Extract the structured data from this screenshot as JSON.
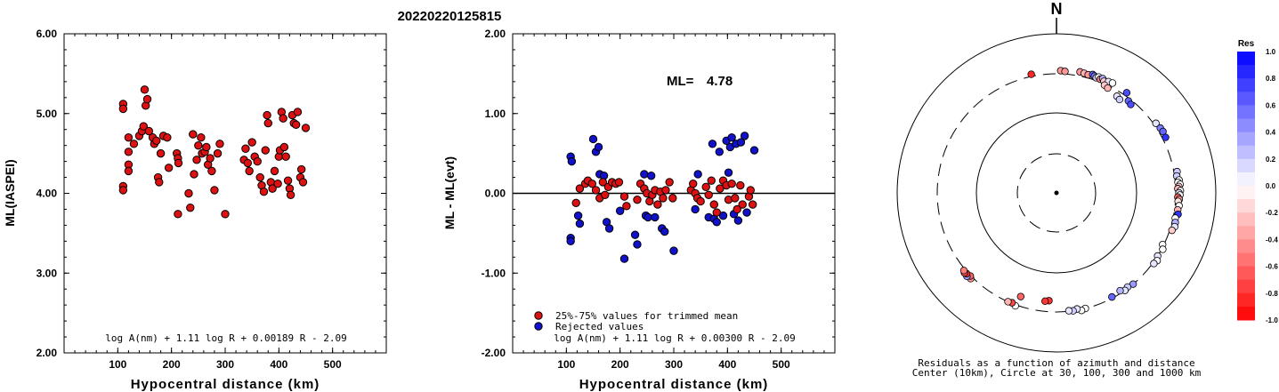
{
  "title": "20220220125815",
  "chart_data": [
    {
      "type": "scatter",
      "ylabel": "ML(IASPEI)",
      "xlabel": "Hypocentral distance (km)",
      "xlim": [
        0,
        600
      ],
      "ylim": [
        2.0,
        6.0
      ],
      "xticks": [
        "100",
        "200",
        "300",
        "400",
        "500"
      ],
      "yticks": [
        "2.00",
        "3.00",
        "4.00",
        "5.00",
        "6.00"
      ],
      "formula": "log A(nm) + 1.11 log R + 0.00189 R - 2.09",
      "marker_color": "#dd1111",
      "points": [
        [
          110,
          5.12
        ],
        [
          110,
          5.06
        ],
        [
          110,
          4.09
        ],
        [
          110,
          4.04
        ],
        [
          120,
          4.7
        ],
        [
          120,
          4.52
        ],
        [
          120,
          4.36
        ],
        [
          120,
          4.28
        ],
        [
          130,
          4.62
        ],
        [
          140,
          4.72
        ],
        [
          145,
          4.78
        ],
        [
          148,
          4.84
        ],
        [
          150,
          5.3
        ],
        [
          152,
          5.1
        ],
        [
          155,
          5.18
        ],
        [
          158,
          4.78
        ],
        [
          165,
          4.7
        ],
        [
          168,
          4.62
        ],
        [
          172,
          4.66
        ],
        [
          175,
          4.2
        ],
        [
          177,
          4.14
        ],
        [
          180,
          4.5
        ],
        [
          185,
          4.72
        ],
        [
          192,
          4.7
        ],
        [
          195,
          4.32
        ],
        [
          210,
          4.5
        ],
        [
          212,
          4.44
        ],
        [
          213,
          4.38
        ],
        [
          212,
          3.74
        ],
        [
          232,
          4.0
        ],
        [
          235,
          3.82
        ],
        [
          240,
          4.74
        ],
        [
          242,
          4.24
        ],
        [
          247,
          4.42
        ],
        [
          250,
          4.6
        ],
        [
          255,
          4.7
        ],
        [
          257,
          4.5
        ],
        [
          262,
          4.52
        ],
        [
          265,
          4.58
        ],
        [
          268,
          4.36
        ],
        [
          272,
          4.44
        ],
        [
          275,
          4.28
        ],
        [
          280,
          4.04
        ],
        [
          286,
          4.5
        ],
        [
          290,
          4.62
        ],
        [
          300,
          3.74
        ],
        [
          335,
          4.42
        ],
        [
          338,
          4.56
        ],
        [
          342,
          4.38
        ],
        [
          345,
          4.28
        ],
        [
          350,
          4.64
        ],
        [
          355,
          4.46
        ],
        [
          360,
          4.4
        ],
        [
          365,
          4.2
        ],
        [
          368,
          4.1
        ],
        [
          372,
          4.02
        ],
        [
          375,
          4.54
        ],
        [
          378,
          4.98
        ],
        [
          380,
          4.88
        ],
        [
          385,
          4.14
        ],
        [
          388,
          4.06
        ],
        [
          392,
          4.28
        ],
        [
          398,
          4.12
        ],
        [
          400,
          4.46
        ],
        [
          402,
          4.54
        ],
        [
          405,
          5.02
        ],
        [
          408,
          4.94
        ],
        [
          410,
          4.58
        ],
        [
          413,
          4.46
        ],
        [
          417,
          4.16
        ],
        [
          420,
          4.06
        ],
        [
          422,
          3.98
        ],
        [
          425,
          4.98
        ],
        [
          428,
          4.88
        ],
        [
          432,
          4.86
        ],
        [
          435,
          5.02
        ],
        [
          440,
          4.2
        ],
        [
          442,
          4.3
        ],
        [
          445,
          4.14
        ],
        [
          450,
          4.82
        ]
      ]
    },
    {
      "type": "scatter",
      "ylabel": "ML - ML(evt)",
      "xlabel": "Hypocentral distance (km)",
      "xlim": [
        0,
        600
      ],
      "ylim": [
        -2.0,
        2.0
      ],
      "xticks": [
        "100",
        "200",
        "300",
        "400",
        "500"
      ],
      "yticks": [
        "-2.00",
        "-1.00",
        "0.00",
        "1.00",
        "2.00"
      ],
      "ml_label": "ML=",
      "ml_value": "4.78",
      "formula": "log A(nm) + 1.11 log R + 0.00300 R - 2.09",
      "legend": [
        {
          "label": "25%-75% values for trimmed mean",
          "color": "#dd1111"
        },
        {
          "label": "Rejected values",
          "color": "#1111cc"
        }
      ],
      "trimmed": [
        [
          118,
          -0.12
        ],
        [
          125,
          0.06
        ],
        [
          135,
          0.12
        ],
        [
          140,
          0.16
        ],
        [
          148,
          0.12
        ],
        [
          155,
          0.04
        ],
        [
          162,
          -0.06
        ],
        [
          168,
          0.14
        ],
        [
          172,
          -0.02
        ],
        [
          178,
          0.08
        ],
        [
          185,
          0.14
        ],
        [
          192,
          0.12
        ],
        [
          198,
          0.14
        ],
        [
          208,
          -0.04
        ],
        [
          212,
          -0.16
        ],
        [
          232,
          -0.08
        ],
        [
          238,
          0.12
        ],
        [
          245,
          0.06
        ],
        [
          250,
          0.0
        ],
        [
          255,
          -0.1
        ],
        [
          260,
          -0.02
        ],
        [
          265,
          0.04
        ],
        [
          270,
          -0.14
        ],
        [
          275,
          0.02
        ],
        [
          280,
          -0.06
        ],
        [
          285,
          0.04
        ],
        [
          292,
          0.14
        ],
        [
          298,
          -0.06
        ],
        [
          332,
          0.04
        ],
        [
          336,
          0.12
        ],
        [
          340,
          0.0
        ],
        [
          344,
          -0.06
        ],
        [
          350,
          -0.1
        ],
        [
          360,
          0.08
        ],
        [
          365,
          -0.02
        ],
        [
          370,
          0.16
        ],
        [
          375,
          -0.14
        ],
        [
          380,
          -0.24
        ],
        [
          386,
          0.06
        ],
        [
          392,
          0.16
        ],
        [
          398,
          0.1
        ],
        [
          402,
          -0.08
        ],
        [
          408,
          0.12
        ],
        [
          414,
          -0.06
        ],
        [
          418,
          -0.2
        ],
        [
          424,
          0.1
        ],
        [
          428,
          -0.14
        ],
        [
          440,
          -0.04
        ],
        [
          443,
          0.04
        ],
        [
          447,
          -0.14
        ]
      ],
      "rejected": [
        [
          108,
          0.46
        ],
        [
          110,
          0.4
        ],
        [
          108,
          -0.56
        ],
        [
          108,
          -0.6
        ],
        [
          122,
          -0.28
        ],
        [
          125,
          -0.38
        ],
        [
          150,
          0.68
        ],
        [
          155,
          0.52
        ],
        [
          160,
          0.58
        ],
        [
          162,
          0.24
        ],
        [
          170,
          0.22
        ],
        [
          175,
          -0.36
        ],
        [
          180,
          -0.44
        ],
        [
          200,
          -0.22
        ],
        [
          208,
          -0.82
        ],
        [
          228,
          -0.52
        ],
        [
          232,
          -0.64
        ],
        [
          245,
          0.24
        ],
        [
          248,
          -0.28
        ],
        [
          252,
          -0.3
        ],
        [
          258,
          0.22
        ],
        [
          265,
          -0.3
        ],
        [
          278,
          -0.44
        ],
        [
          283,
          -0.48
        ],
        [
          300,
          -0.72
        ],
        [
          340,
          -0.2
        ],
        [
          345,
          0.24
        ],
        [
          365,
          -0.3
        ],
        [
          372,
          0.62
        ],
        [
          375,
          -0.32
        ],
        [
          380,
          -0.36
        ],
        [
          385,
          0.52
        ],
        [
          392,
          -0.28
        ],
        [
          398,
          0.66
        ],
        [
          402,
          0.26
        ],
        [
          405,
          0.58
        ],
        [
          408,
          0.7
        ],
        [
          412,
          -0.26
        ],
        [
          416,
          0.62
        ],
        [
          420,
          -0.34
        ],
        [
          425,
          0.64
        ],
        [
          432,
          0.72
        ],
        [
          436,
          -0.24
        ],
        [
          450,
          0.54
        ]
      ]
    },
    {
      "type": "scatter",
      "subtype": "polar",
      "north_label": "N",
      "caption_line1": "Residuals as a function of azimuth and distance",
      "caption_line2": "Center (10km), Circle at 30, 100, 300 and 1000 km",
      "colorbar_title": "Res",
      "colorbar_ticks": [
        "1.0",
        "0.8",
        "0.6",
        "0.4",
        "0.2",
        "0.0",
        "-0.2",
        "-0.4",
        "-0.6",
        "-0.8",
        "-1.0"
      ],
      "colorbar_range": [
        -1.0,
        1.0
      ],
      "distance_rings_km": [
        10,
        30,
        100,
        300,
        1000
      ],
      "points": [
        {
          "az": -12,
          "dist": 320,
          "res": -0.85
        },
        {
          "az": 2,
          "dist": 330,
          "res": -0.4
        },
        {
          "az": 4,
          "dist": 325,
          "res": -0.4
        },
        {
          "az": 11,
          "dist": 340,
          "res": -0.4
        },
        {
          "az": 13,
          "dist": 335,
          "res": -0.3
        },
        {
          "az": 15,
          "dist": 330,
          "res": -0.4
        },
        {
          "az": 17,
          "dist": 345,
          "res": 0.6
        },
        {
          "az": 18,
          "dist": 335,
          "res": 0.5
        },
        {
          "az": 19,
          "dist": 325,
          "res": 0.2
        },
        {
          "az": 20,
          "dist": 340,
          "res": 0.0
        },
        {
          "az": 21,
          "dist": 325,
          "res": -0.5
        },
        {
          "az": 22,
          "dist": 340,
          "res": 0.3
        },
        {
          "az": 23,
          "dist": 320,
          "res": -0.2
        },
        {
          "az": 25,
          "dist": 335,
          "res": 0.1
        },
        {
          "az": 27,
          "dist": 340,
          "res": 0.0
        },
        {
          "az": 24,
          "dist": 290,
          "res": -0.2
        },
        {
          "az": 26,
          "dist": 280,
          "res": -0.3
        },
        {
          "az": 32,
          "dist": 260,
          "res": 0.1
        },
        {
          "az": 34,
          "dist": 250,
          "res": 0.2
        },
        {
          "az": 35,
          "dist": 330,
          "res": 0.7
        },
        {
          "az": 38,
          "dist": 280,
          "res": 0.6
        },
        {
          "az": 40,
          "dist": 270,
          "res": 0.7
        },
        {
          "az": 55,
          "dist": 320,
          "res": 0.1
        },
        {
          "az": 58,
          "dist": 330,
          "res": 0.5
        },
        {
          "az": 60,
          "dist": 335,
          "res": 0.6
        },
        {
          "az": 63,
          "dist": 330,
          "res": 0.8
        },
        {
          "az": 80,
          "dist": 330,
          "res": 0.2
        },
        {
          "az": 82,
          "dist": 320,
          "res": 0.2
        },
        {
          "az": 84,
          "dist": 338,
          "res": 0.0
        },
        {
          "az": 85,
          "dist": 325,
          "res": 0.0
        },
        {
          "az": 86,
          "dist": 345,
          "res": 0.0
        },
        {
          "az": 87,
          "dist": 330,
          "res": -0.2
        },
        {
          "az": 88,
          "dist": 320,
          "res": -0.3
        },
        {
          "az": 89,
          "dist": 345,
          "res": 0.0
        },
        {
          "az": 90,
          "dist": 330,
          "res": 0.1
        },
        {
          "az": 91,
          "dist": 340,
          "res": 0.0
        },
        {
          "az": 92,
          "dist": 320,
          "res": -0.6
        },
        {
          "az": 93,
          "dist": 335,
          "res": -0.4
        },
        {
          "az": 94,
          "dist": 325,
          "res": -0.1
        },
        {
          "az": 96,
          "dist": 338,
          "res": 0.0
        },
        {
          "az": 98,
          "dist": 330,
          "res": -0.3
        },
        {
          "az": 100,
          "dist": 340,
          "res": 0.8
        },
        {
          "az": 102,
          "dist": 320,
          "res": 0.0
        },
        {
          "az": 104,
          "dist": 330,
          "res": 0.3
        },
        {
          "az": 106,
          "dist": 335,
          "res": 0.1
        },
        {
          "az": 108,
          "dist": 320,
          "res": -0.2
        },
        {
          "az": 116,
          "dist": 290,
          "res": 0.0
        },
        {
          "az": 118,
          "dist": 310,
          "res": 0.0
        },
        {
          "az": 122,
          "dist": 300,
          "res": 0.1
        },
        {
          "az": 124,
          "dist": 320,
          "res": 0.0
        },
        {
          "az": 126,
          "dist": 310,
          "res": 0.1
        },
        {
          "az": 140,
          "dist": 300,
          "res": 0.4
        },
        {
          "az": 143,
          "dist": 290,
          "res": 0.2
        },
        {
          "az": 145,
          "dist": 300,
          "res": 0.1
        },
        {
          "az": 147,
          "dist": 280,
          "res": 0.3
        },
        {
          "az": 152,
          "dist": 290,
          "res": 0.6
        },
        {
          "az": 166,
          "dist": 300,
          "res": 0.0
        },
        {
          "az": 168,
          "dist": 310,
          "res": 0.0
        },
        {
          "az": 170,
          "dist": 290,
          "res": 0.1
        },
        {
          "az": 172,
          "dist": 300,
          "res": 0.2
        },
        {
          "az": 174,
          "dist": 295,
          "res": 0.1
        },
        {
          "az": 184,
          "dist": 220,
          "res": -0.8
        },
        {
          "az": 186,
          "dist": 225,
          "res": -0.8
        },
        {
          "az": 199,
          "dist": 230,
          "res": -0.6
        },
        {
          "az": 200,
          "dist": 310,
          "res": 0.0
        },
        {
          "az": 202,
          "dist": 295,
          "res": -0.7
        },
        {
          "az": 204,
          "dist": 300,
          "res": -0.3
        },
        {
          "az": 225,
          "dist": 320,
          "res": -0.4
        },
        {
          "az": 226,
          "dist": 305,
          "res": -0.6
        },
        {
          "az": 227,
          "dist": 330,
          "res": 0.4
        },
        {
          "az": 228,
          "dist": 315,
          "res": -0.8
        },
        {
          "az": 229,
          "dist": 325,
          "res": -0.7
        },
        {
          "az": 230,
          "dist": 315,
          "res": -0.5
        }
      ]
    }
  ]
}
